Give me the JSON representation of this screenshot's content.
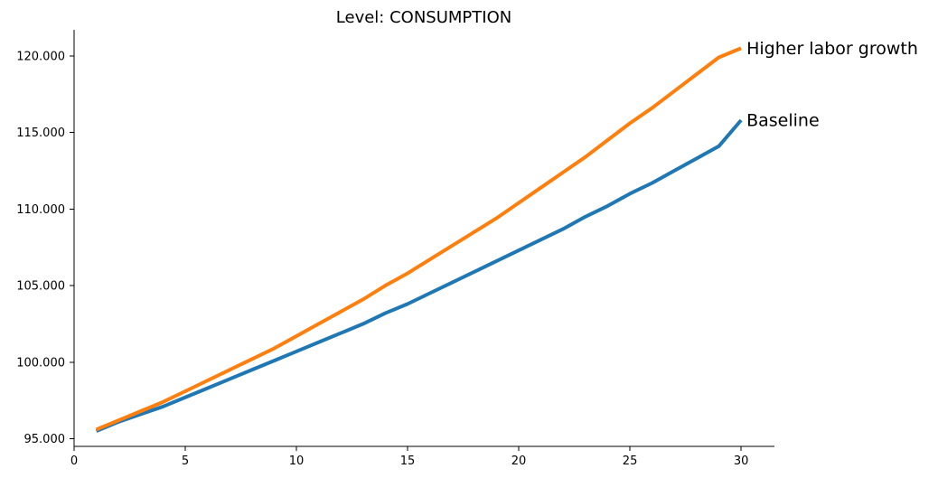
{
  "chart_data": {
    "type": "line",
    "title": "Level: CONSUMPTION",
    "xlabel": "",
    "ylabel": "",
    "xlim": [
      0,
      31.5
    ],
    "ylim": [
      94.5,
      121.7
    ],
    "x_ticks": [
      0,
      5,
      10,
      15,
      20,
      25,
      30
    ],
    "x_tick_labels": [
      "0",
      "5",
      "10",
      "15",
      "20",
      "25",
      "30"
    ],
    "y_ticks": [
      95,
      100,
      105,
      110,
      115,
      120
    ],
    "y_tick_labels": [
      "95.000",
      "100.000",
      "105.000",
      "110.000",
      "115.000",
      "120.000"
    ],
    "grid": false,
    "legend": "none",
    "series": [
      {
        "name": "Baseline",
        "color": "#1f77b4",
        "x": [
          1,
          2,
          3,
          4,
          5,
          6,
          7,
          8,
          9,
          10,
          11,
          12,
          13,
          14,
          15,
          16,
          17,
          18,
          19,
          20,
          21,
          22,
          23,
          24,
          25,
          26,
          27,
          28,
          29,
          30
        ],
        "values": [
          95.5,
          96.1,
          96.6,
          97.1,
          97.7,
          98.3,
          98.9,
          99.5,
          100.1,
          100.7,
          101.3,
          101.9,
          102.5,
          103.2,
          103.8,
          104.5,
          105.2,
          105.9,
          106.6,
          107.3,
          108.0,
          108.7,
          109.5,
          110.2,
          111.0,
          111.7,
          112.5,
          113.3,
          114.1,
          115.8
        ]
      },
      {
        "name": "Higher labor growth",
        "color": "#ff7f0e",
        "x": [
          1,
          2,
          3,
          4,
          5,
          6,
          7,
          8,
          9,
          10,
          11,
          12,
          13,
          14,
          15,
          16,
          17,
          18,
          19,
          20,
          21,
          22,
          23,
          24,
          25,
          26,
          27,
          28,
          29,
          30
        ],
        "values": [
          95.6,
          96.2,
          96.8,
          97.4,
          98.1,
          98.8,
          99.5,
          100.2,
          100.9,
          101.7,
          102.5,
          103.3,
          104.1,
          105.0,
          105.8,
          106.7,
          107.6,
          108.5,
          109.4,
          110.4,
          111.4,
          112.4,
          113.4,
          114.5,
          115.6,
          116.6,
          117.7,
          118.8,
          119.9,
          120.5
        ]
      }
    ]
  }
}
